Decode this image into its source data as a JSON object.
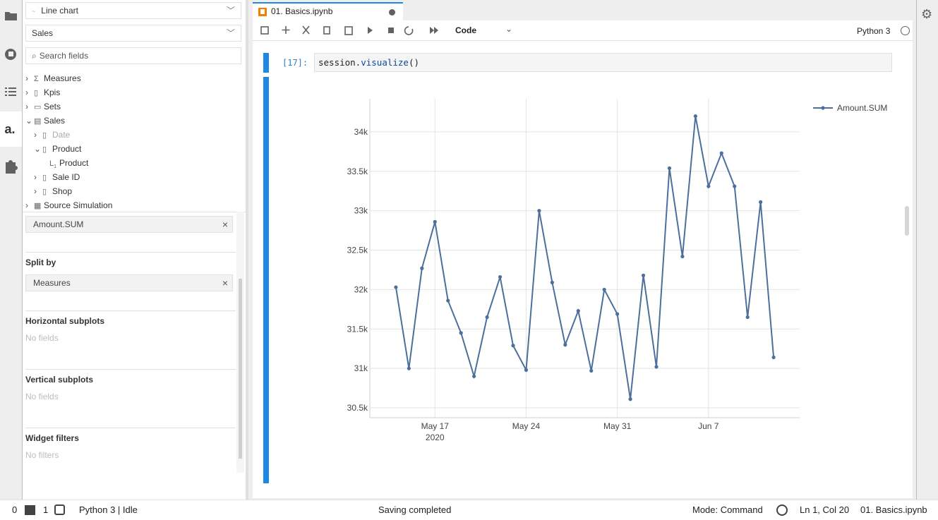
{
  "left_sidebar": {
    "chart_type": "Line chart",
    "cube": "Sales",
    "search_placeholder": "Search fields",
    "tree": [
      "Measures",
      "Kpis",
      "Sets",
      "Sales",
      "Date",
      "Product",
      "Product",
      "Sale ID",
      "Shop",
      "Source Simulation"
    ],
    "values_field": "Amount.SUM",
    "split_by": {
      "title": "Split by",
      "field": "Measures"
    },
    "horizontal_subplots": {
      "title": "Horizontal subplots",
      "empty": "No fields"
    },
    "vertical_subplots": {
      "title": "Vertical subplots",
      "empty": "No fields"
    },
    "widget_filters": {
      "title": "Widget filters",
      "empty": "No filters"
    }
  },
  "tab": {
    "title": "01. Basics.ipynb"
  },
  "toolbar": {
    "cell_type": "Code",
    "kernel": "Python 3"
  },
  "cell": {
    "prompt": "[17]:",
    "code": [
      "session.",
      "visualize",
      "()"
    ]
  },
  "chart_data": {
    "type": "line",
    "x": [
      "2020-05-14",
      "2020-05-15",
      "2020-05-16",
      "2020-05-17",
      "2020-05-18",
      "2020-05-19",
      "2020-05-20",
      "2020-05-21",
      "2020-05-22",
      "2020-05-23",
      "2020-05-24",
      "2020-05-25",
      "2020-05-26",
      "2020-05-27",
      "2020-05-28",
      "2020-05-29",
      "2020-05-30",
      "2020-05-31",
      "2020-06-01",
      "2020-06-02",
      "2020-06-03",
      "2020-06-04",
      "2020-06-05",
      "2020-06-06",
      "2020-06-07",
      "2020-06-08",
      "2020-06-09",
      "2020-06-10",
      "2020-06-11",
      "2020-06-12"
    ],
    "series": [
      {
        "name": "Amount.SUM",
        "color": "#4c6f9c",
        "values": [
          32030,
          31000,
          32270,
          32860,
          31860,
          31450,
          30900,
          31650,
          32160,
          31290,
          30980,
          33000,
          32090,
          31300,
          31730,
          30970,
          32000,
          31690,
          30610,
          32180,
          31020,
          33540,
          32420,
          34200,
          33310,
          33730,
          33310,
          31650,
          33110,
          31140
        ]
      }
    ],
    "xlim": [
      "2020-05-12",
      "2020-06-14"
    ],
    "xticks": [
      {
        "value": "2020-05-17",
        "label": "May 17"
      },
      {
        "value": "2020-05-24",
        "label": "May 24"
      },
      {
        "value": "2020-05-31",
        "label": "May 31"
      },
      {
        "value": "2020-06-07",
        "label": "Jun 7"
      }
    ],
    "xtick_year_label": "2020",
    "ylim": [
      30375,
      34420
    ],
    "yticks": [
      {
        "value": 30500,
        "label": "30.5k"
      },
      {
        "value": 31000,
        "label": "31k"
      },
      {
        "value": 31500,
        "label": "31.5k"
      },
      {
        "value": 32000,
        "label": "32k"
      },
      {
        "value": 32500,
        "label": "32.5k"
      },
      {
        "value": 33000,
        "label": "33k"
      },
      {
        "value": 33500,
        "label": "33.5k"
      },
      {
        "value": 34000,
        "label": "34k"
      }
    ],
    "grid": true,
    "legend": "top-right"
  },
  "status_bar": {
    "terminals": "0",
    "kernels": "1",
    "kernel_status": "Python 3 | Idle",
    "message": "Saving completed",
    "mode": "Mode: Command",
    "cursor": "Ln 1, Col 20",
    "file": "01. Basics.ipynb"
  }
}
